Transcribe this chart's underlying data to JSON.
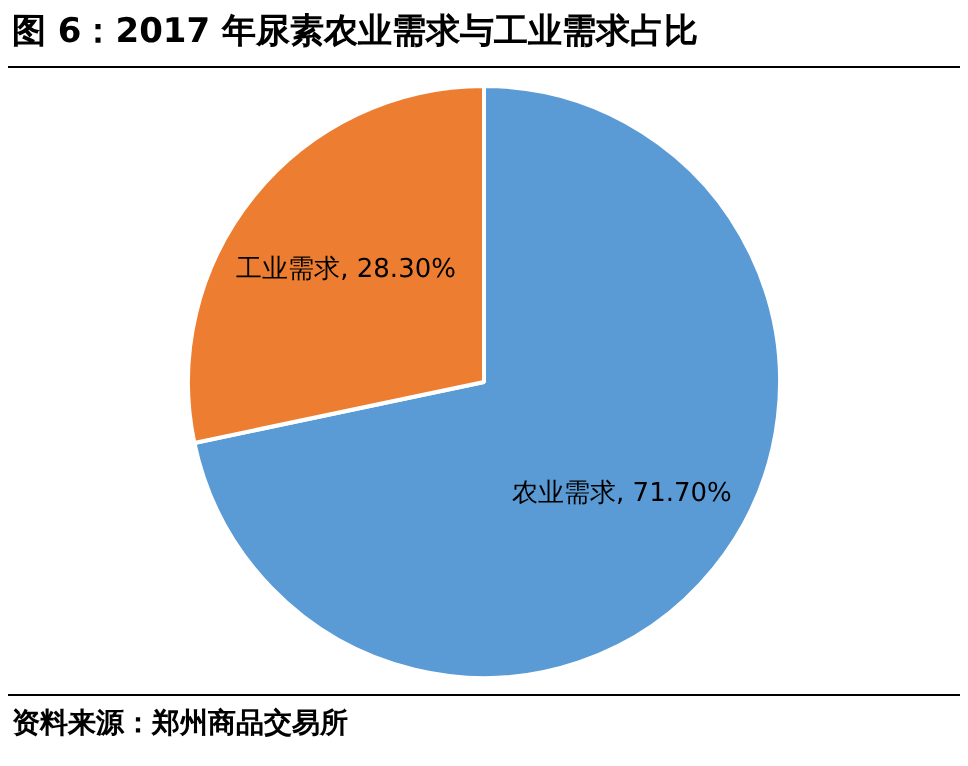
{
  "chart_data": {
    "type": "pie",
    "title": "图 6：2017 年尿素农业需求与工业需求占比",
    "categories": [
      "农业需求",
      "工业需求"
    ],
    "values": [
      71.7,
      28.3
    ],
    "value_labels": [
      "71.70%",
      "28.30%"
    ],
    "colors": [
      "#5b9bd5",
      "#ed7d31"
    ],
    "legend": false,
    "annotations": [
      "资料来源：郑州商品交易所"
    ]
  }
}
